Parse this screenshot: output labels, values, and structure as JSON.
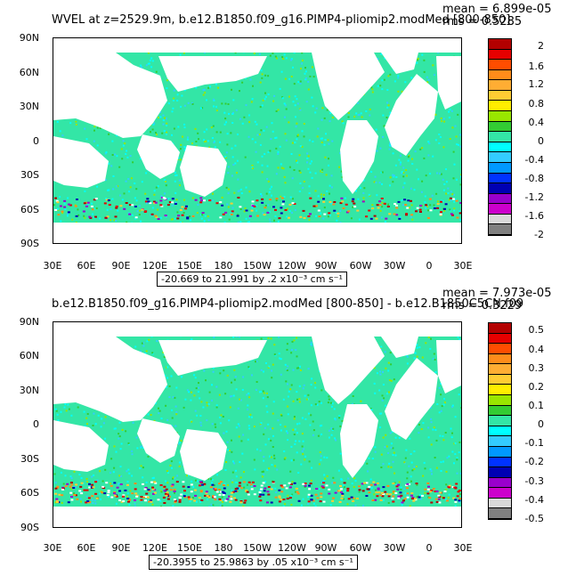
{
  "panel1": {
    "title": "WVEL at z=2529.9m, b.e12.B1850.f09_g16.PIMP4-pliomip2.modMed [800-850]",
    "stats_mean": "mean = 6.899e-05",
    "stats_rms": "rms = 0.5285",
    "lat_labels": [
      "90N",
      "60N",
      "30N",
      "0",
      "30S",
      "60S",
      "90S"
    ],
    "lon_labels": [
      "30E",
      "60E",
      "90E",
      "120E",
      "150E",
      "180",
      "150W",
      "120W",
      "90W",
      "60W",
      "30W",
      "0",
      "30E"
    ],
    "colorbar_labels": [
      "2",
      "1.6",
      "1.2",
      "0.8",
      "0.4",
      "0",
      "-0.4",
      "-0.8",
      "-1.2",
      "-1.6",
      "-2"
    ],
    "range_text": "-20.669 to 21.991 by .2 x10⁻³ cm s⁻¹"
  },
  "panel2": {
    "title": "b.e12.B1850.f09_g16.PIMP4-pliomip2.modMed [800-850] - b.e12.B1850C5CN.f09",
    "stats_mean": "mean = 7.973e-05",
    "stats_rms": "rms = 0.3229",
    "lat_labels": [
      "90N",
      "60N",
      "30N",
      "0",
      "30S",
      "60S",
      "90S"
    ],
    "lon_labels": [
      "30E",
      "60E",
      "90E",
      "120E",
      "150E",
      "180",
      "150W",
      "120W",
      "90W",
      "60W",
      "30W",
      "0",
      "30E"
    ],
    "colorbar_labels": [
      "0.5",
      "0.4",
      "0.3",
      "0.2",
      "0.1",
      "0",
      "-0.1",
      "-0.2",
      "-0.3",
      "-0.4",
      "-0.5"
    ],
    "range_text": "-20.3955 to 25.9863 by .05 x10⁻³ cm s⁻¹"
  },
  "colors": {
    "palette_top_to_bottom": [
      "#b30000",
      "#e60000",
      "#ff4d00",
      "#ff8c1a",
      "#ffad33",
      "#ffcc33",
      "#ffee00",
      "#99e600",
      "#33cc33",
      "#33e6a6",
      "#00ffff",
      "#33ccff",
      "#0099ff",
      "#0033ff",
      "#0000b3",
      "#9900cc",
      "#cc00cc",
      "#d9d9d9",
      "#808080"
    ],
    "ocean_dominant": "#33e6a6",
    "land": "#ffffff"
  }
}
